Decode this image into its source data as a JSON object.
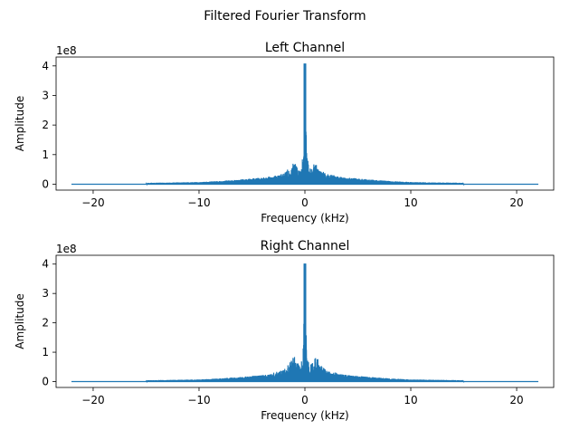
{
  "figure": {
    "suptitle": "Filtered Fourier Transform"
  },
  "chart_data": [
    {
      "type": "line",
      "title": "Left Channel",
      "xlabel": "Frequency (kHz)",
      "ylabel": "Amplitude",
      "y_offset_label": "1e8",
      "xlim": [
        -23.5,
        23.5
      ],
      "ylim": [
        -0.2,
        4.3
      ],
      "xticks": [
        -20,
        -10,
        0,
        10,
        20
      ],
      "xtick_labels": [
        "−20",
        "−10",
        "0",
        "10",
        "20"
      ],
      "yticks": [
        0,
        1,
        2,
        3,
        4
      ],
      "ytick_labels": [
        "0",
        "1",
        "2",
        "3",
        "4"
      ],
      "series_color": "#1f77b4",
      "peak_amplitude": 4.08,
      "x_extent": [
        -22.05,
        22.05
      ],
      "grid": false,
      "series": [
        {
          "x": [
            -22.05,
            -15.0,
            -14.9,
            -10.0,
            -8.0,
            -6.0,
            -4.0,
            -3.0,
            -2.0,
            -1.5,
            -1.0,
            -0.8,
            -0.6,
            -0.5,
            -0.4,
            -0.3,
            -0.2,
            -0.15,
            -0.1,
            -0.05,
            0.0,
            0.05,
            0.1,
            0.15,
            0.2,
            0.3,
            0.4,
            0.5,
            0.6,
            0.8,
            1.0,
            1.5,
            2.0,
            3.0,
            4.0,
            6.0,
            8.0,
            10.0,
            14.9,
            15.0,
            22.05
          ],
          "values": [
            0.0,
            0.0,
            0.05,
            0.08,
            0.12,
            0.18,
            0.25,
            0.3,
            0.35,
            0.55,
            0.75,
            0.65,
            0.6,
            0.55,
            0.5,
            0.85,
            0.9,
            1.2,
            2.35,
            1.8,
            4.08,
            1.8,
            2.35,
            1.2,
            0.9,
            0.85,
            0.5,
            0.55,
            0.6,
            0.65,
            0.75,
            0.55,
            0.35,
            0.3,
            0.25,
            0.18,
            0.12,
            0.08,
            0.05,
            0.0,
            0.0
          ]
        }
      ]
    },
    {
      "type": "line",
      "title": "Right Channel",
      "xlabel": "Frequency (kHz)",
      "ylabel": "Amplitude",
      "y_offset_label": "1e8",
      "xlim": [
        -23.5,
        23.5
      ],
      "ylim": [
        -0.2,
        4.3
      ],
      "xticks": [
        -20,
        -10,
        0,
        10,
        20
      ],
      "xtick_labels": [
        "−20",
        "−10",
        "0",
        "10",
        "20"
      ],
      "yticks": [
        0,
        1,
        2,
        3,
        4
      ],
      "ytick_labels": [
        "0",
        "1",
        "2",
        "3",
        "4"
      ],
      "series_color": "#1f77b4",
      "peak_amplitude": 4.02,
      "x_extent": [
        -22.05,
        22.05
      ],
      "grid": false,
      "series": [
        {
          "x": [
            -22.05,
            -15.0,
            -14.9,
            -10.0,
            -8.0,
            -6.0,
            -4.0,
            -3.0,
            -2.0,
            -1.5,
            -1.0,
            -0.8,
            -0.6,
            -0.5,
            -0.4,
            -0.3,
            -0.2,
            -0.15,
            -0.1,
            -0.05,
            0.0,
            0.05,
            0.1,
            0.15,
            0.2,
            0.3,
            0.4,
            0.5,
            0.6,
            0.8,
            1.0,
            1.5,
            2.0,
            3.0,
            4.0,
            6.0,
            8.0,
            10.0,
            14.9,
            15.0,
            22.05
          ],
          "values": [
            0.0,
            0.0,
            0.05,
            0.08,
            0.12,
            0.18,
            0.25,
            0.3,
            0.4,
            0.6,
            0.95,
            0.7,
            0.6,
            0.55,
            0.5,
            0.9,
            1.05,
            1.5,
            2.2,
            1.7,
            4.02,
            1.7,
            2.2,
            1.5,
            1.05,
            0.9,
            0.5,
            0.55,
            0.6,
            0.7,
            0.95,
            0.6,
            0.4,
            0.3,
            0.25,
            0.18,
            0.12,
            0.08,
            0.05,
            0.0,
            0.0
          ]
        }
      ]
    }
  ]
}
